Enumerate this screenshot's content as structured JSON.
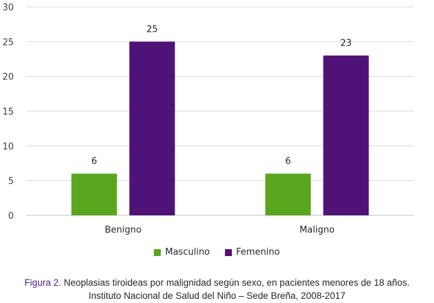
{
  "chart_data": {
    "type": "bar",
    "categories": [
      "Benigno",
      "Maligno"
    ],
    "series": [
      {
        "name": "Masculino",
        "values": [
          6,
          6
        ],
        "color": "#5aa51e"
      },
      {
        "name": "Femenino",
        "values": [
          25,
          23
        ],
        "color": "#4f1277"
      }
    ],
    "ylim": [
      0,
      30
    ],
    "yticks": [
      0,
      5,
      10,
      15,
      20,
      25,
      30
    ],
    "grid": "horizontal",
    "legend": "bottom",
    "title": "",
    "xlabel": "",
    "ylabel": ""
  },
  "caption": {
    "label": "Figura 2.",
    "line1": "Neoplasias tiroideas por malignidad según sexo, en pacientes menores de 18 años.",
    "line2": "Instituto Nacional de Salud del Niño – Sede Breña, 2008-2017"
  }
}
